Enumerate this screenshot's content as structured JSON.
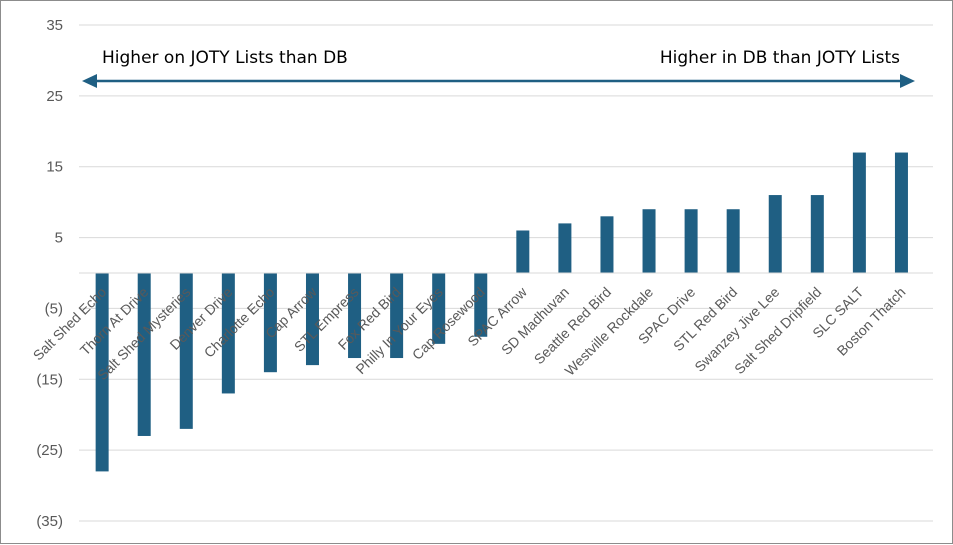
{
  "chart_data": {
    "type": "bar",
    "title": "",
    "xlabel": "",
    "ylabel": "",
    "ylim": [
      -35,
      35
    ],
    "y_ticks": [
      35,
      25,
      15,
      5,
      -5,
      -15,
      -25,
      -35
    ],
    "y_tick_labels": [
      "35",
      "25",
      "15",
      "5",
      "(5)",
      "(15)",
      "(25)",
      "(35)"
    ],
    "grid": true,
    "bar_color": "#1f5f83",
    "categories": [
      "Salt Shed Echo",
      "Thorn At Drive",
      "Salt Shed Mysteries",
      "Denver Drive",
      "Charlotte Echo",
      "Cap Arrow",
      "STL Empress",
      "Fox Red Bird",
      "Philly In Your Eyes",
      "Cap Rosewood",
      "SPAC Arrow",
      "SD Madhuvan",
      "Seattle Red Bird",
      "Westville Rockdale",
      "SPAC Drive",
      "STL Red Bird",
      "Swanzey Jive Lee",
      "Salt Shed Dripfield",
      "SLC SALT",
      "Boston Thatch"
    ],
    "values": [
      -28,
      -23,
      -22,
      -17,
      -14,
      -13,
      -12,
      -12,
      -10,
      -9,
      6,
      7,
      8,
      9,
      9,
      9,
      11,
      11,
      17,
      17
    ],
    "annotations": {
      "left": "Higher on JOTY Lists than DB",
      "right": "Higher in DB than JOTY Lists"
    }
  }
}
